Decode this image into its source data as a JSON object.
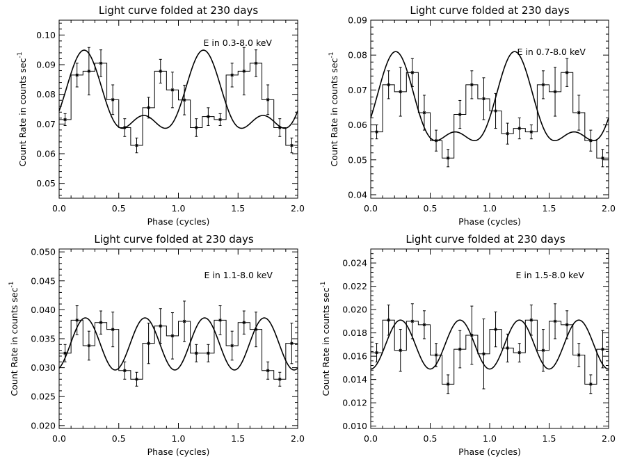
{
  "chart_data": [
    {
      "type": "line",
      "title": "Light curve folded at 230 days",
      "xlabel": "Phase (cycles)",
      "ylabel": "Count Rate in counts sec",
      "ylabel_sup": "-1",
      "annotation": "E in 0.3-8.0 keV",
      "xlim": [
        0.0,
        2.0
      ],
      "ylim": [
        0.045,
        0.105
      ],
      "x_ticks": [
        0.0,
        0.5,
        1.0,
        1.5,
        2.0
      ],
      "x_tick_labels": [
        "0.0",
        "0.5",
        "1.0",
        "1.5",
        "2.0"
      ],
      "y_ticks": [
        0.05,
        0.06,
        0.07,
        0.08,
        0.09,
        0.1
      ],
      "y_tick_labels": [
        "0.05",
        "0.06",
        "0.07",
        "0.08",
        "0.09",
        "0.10"
      ],
      "bin_width": 0.1,
      "series": [
        {
          "name": "folded data",
          "x": [
            0.0,
            0.1,
            0.2,
            0.3,
            0.4,
            0.5,
            0.6,
            0.7,
            0.8,
            0.9,
            1.0,
            1.1,
            1.2,
            1.3,
            1.4,
            1.5,
            1.6,
            1.7,
            1.8,
            1.9
          ],
          "y": [
            0.0715,
            0.0865,
            0.0878,
            0.0905,
            0.0782,
            0.0688,
            0.0628,
            0.0755,
            0.0878,
            0.0815,
            0.0781,
            0.0688,
            0.0725,
            0.0715,
            0.0865,
            0.0878,
            0.0905,
            0.0782,
            0.0688,
            0.0628
          ],
          "err": [
            0.002,
            0.004,
            0.008,
            0.0045,
            0.005,
            0.003,
            0.0025,
            0.0035,
            0.004,
            0.006,
            0.005,
            0.003,
            0.003,
            0.002,
            0.004,
            0.008,
            0.0045,
            0.005,
            0.003,
            0.0025
          ]
        },
        {
          "name": "sinusoid fit",
          "model": {
            "mean": 0.0774,
            "amp1": 0.011,
            "amp2": 0.0065,
            "phase1": 0.21,
            "phase2": 0.21
          }
        }
      ]
    },
    {
      "type": "line",
      "title": "Light curve folded at 230 days",
      "xlabel": "Phase (cycles)",
      "ylabel": "Count Rate in counts sec",
      "ylabel_sup": "-1",
      "annotation": "E in 0.7-8.0 keV",
      "xlim": [
        0.0,
        2.0
      ],
      "ylim": [
        0.039,
        0.09
      ],
      "x_ticks": [
        0.0,
        0.5,
        1.0,
        1.5,
        2.0
      ],
      "x_tick_labels": [
        "0.0",
        "0.5",
        "1.0",
        "1.5",
        "2.0"
      ],
      "y_ticks": [
        0.04,
        0.05,
        0.06,
        0.07,
        0.08,
        0.09
      ],
      "y_tick_labels": [
        "0.04",
        "0.05",
        "0.06",
        "0.07",
        "0.08",
        "0.09"
      ],
      "bin_width": 0.1,
      "series": [
        {
          "name": "folded data",
          "x": [
            0.0,
            0.1,
            0.2,
            0.3,
            0.4,
            0.5,
            0.6,
            0.7,
            0.8,
            0.9,
            1.0,
            1.1,
            1.2,
            1.3,
            1.4,
            1.5,
            1.6,
            1.7,
            1.8,
            1.9
          ],
          "y": [
            0.058,
            0.0715,
            0.0695,
            0.075,
            0.0635,
            0.0555,
            0.0505,
            0.063,
            0.0715,
            0.0675,
            0.064,
            0.0575,
            0.059,
            0.058,
            0.0715,
            0.0695,
            0.075,
            0.0635,
            0.0555,
            0.0505
          ],
          "err": [
            0.002,
            0.004,
            0.007,
            0.004,
            0.005,
            0.003,
            0.0025,
            0.004,
            0.004,
            0.006,
            0.005,
            0.003,
            0.003,
            0.002,
            0.004,
            0.007,
            0.004,
            0.005,
            0.003,
            0.0025
          ]
        },
        {
          "name": "sinusoid fit",
          "model": {
            "mean": 0.064,
            "amp1": 0.0115,
            "amp2": 0.0055,
            "phase1": 0.21,
            "phase2": 0.21
          }
        }
      ]
    },
    {
      "type": "line",
      "title": "Light curve folded at 230 days",
      "xlabel": "Phase (cycles)",
      "ylabel": "Count Rate in counts sec",
      "ylabel_sup": "-1",
      "annotation": "E in 1.1-8.0 keV",
      "xlim": [
        0.0,
        2.0
      ],
      "ylim": [
        0.0195,
        0.0505
      ],
      "x_ticks": [
        0.0,
        0.5,
        1.0,
        1.5,
        2.0
      ],
      "x_tick_labels": [
        "0.0",
        "0.5",
        "1.0",
        "1.5",
        "2.0"
      ],
      "y_ticks": [
        0.02,
        0.025,
        0.03,
        0.035,
        0.04,
        0.045,
        0.05
      ],
      "y_tick_labels": [
        "0.020",
        "0.025",
        "0.030",
        "0.035",
        "0.040",
        "0.045",
        "0.050"
      ],
      "bin_width": 0.1,
      "series": [
        {
          "name": "folded data",
          "x": [
            0.0,
            0.1,
            0.2,
            0.3,
            0.4,
            0.5,
            0.6,
            0.7,
            0.8,
            0.9,
            1.0,
            1.1,
            1.2,
            1.3,
            1.4,
            1.5,
            1.6,
            1.7,
            1.8,
            1.9
          ],
          "y": [
            0.0325,
            0.0382,
            0.0338,
            0.0378,
            0.0366,
            0.0295,
            0.028,
            0.0342,
            0.0372,
            0.0355,
            0.038,
            0.0325,
            0.0325,
            0.0382,
            0.0338,
            0.0378,
            0.0366,
            0.0295,
            0.028,
            0.0342
          ],
          "err": [
            0.0015,
            0.0025,
            0.0025,
            0.002,
            0.003,
            0.0015,
            0.0012,
            0.0035,
            0.003,
            0.004,
            0.0035,
            0.0015,
            0.0015,
            0.0025,
            0.0025,
            0.002,
            0.003,
            0.0015,
            0.0012,
            0.0035
          ]
        },
        {
          "name": "sinusoid fit",
          "model": {
            "mean": 0.0341,
            "amp1": 0.0,
            "amp2": 0.0045,
            "phase1": 0.0,
            "phase2": 0.22
          }
        }
      ]
    },
    {
      "type": "line",
      "title": "Light curve folded at 230 days",
      "xlabel": "Phase (cycles)",
      "ylabel": "Count Rate in counts sec",
      "ylabel_sup": "-1",
      "annotation": "E in 1.5-8.0 keV",
      "xlim": [
        0.0,
        2.0
      ],
      "ylim": [
        0.0098,
        0.0252
      ],
      "x_ticks": [
        0.0,
        0.5,
        1.0,
        1.5,
        2.0
      ],
      "x_tick_labels": [
        "0.0",
        "0.5",
        "1.0",
        "1.5",
        "2.0"
      ],
      "y_ticks": [
        0.01,
        0.012,
        0.014,
        0.016,
        0.018,
        0.02,
        0.022,
        0.024
      ],
      "y_tick_labels": [
        "0.010",
        "0.012",
        "0.014",
        "0.016",
        "0.018",
        "0.020",
        "0.022",
        "0.024"
      ],
      "bin_width": 0.1,
      "series": [
        {
          "name": "folded data",
          "x": [
            0.0,
            0.1,
            0.2,
            0.3,
            0.4,
            0.5,
            0.6,
            0.7,
            0.8,
            0.9,
            1.0,
            1.1,
            1.2,
            1.3,
            1.4,
            1.5,
            1.6,
            1.7,
            1.8,
            1.9
          ],
          "y": [
            0.0163,
            0.0191,
            0.0165,
            0.019,
            0.0187,
            0.0161,
            0.0136,
            0.0166,
            0.0178,
            0.0162,
            0.0183,
            0.0167,
            0.0163,
            0.0191,
            0.0165,
            0.019,
            0.0187,
            0.0161,
            0.0136,
            0.0166
          ],
          "err": [
            0.0008,
            0.0013,
            0.0018,
            0.0015,
            0.0012,
            0.001,
            0.0008,
            0.0016,
            0.0025,
            0.003,
            0.0015,
            0.0012,
            0.0008,
            0.0013,
            0.0018,
            0.0015,
            0.0012,
            0.001,
            0.0008,
            0.0016
          ]
        },
        {
          "name": "sinusoid fit",
          "model": {
            "mean": 0.017,
            "amp1": 0.0,
            "amp2": 0.0021,
            "phase1": 0.0,
            "phase2": 0.25
          }
        }
      ]
    }
  ]
}
